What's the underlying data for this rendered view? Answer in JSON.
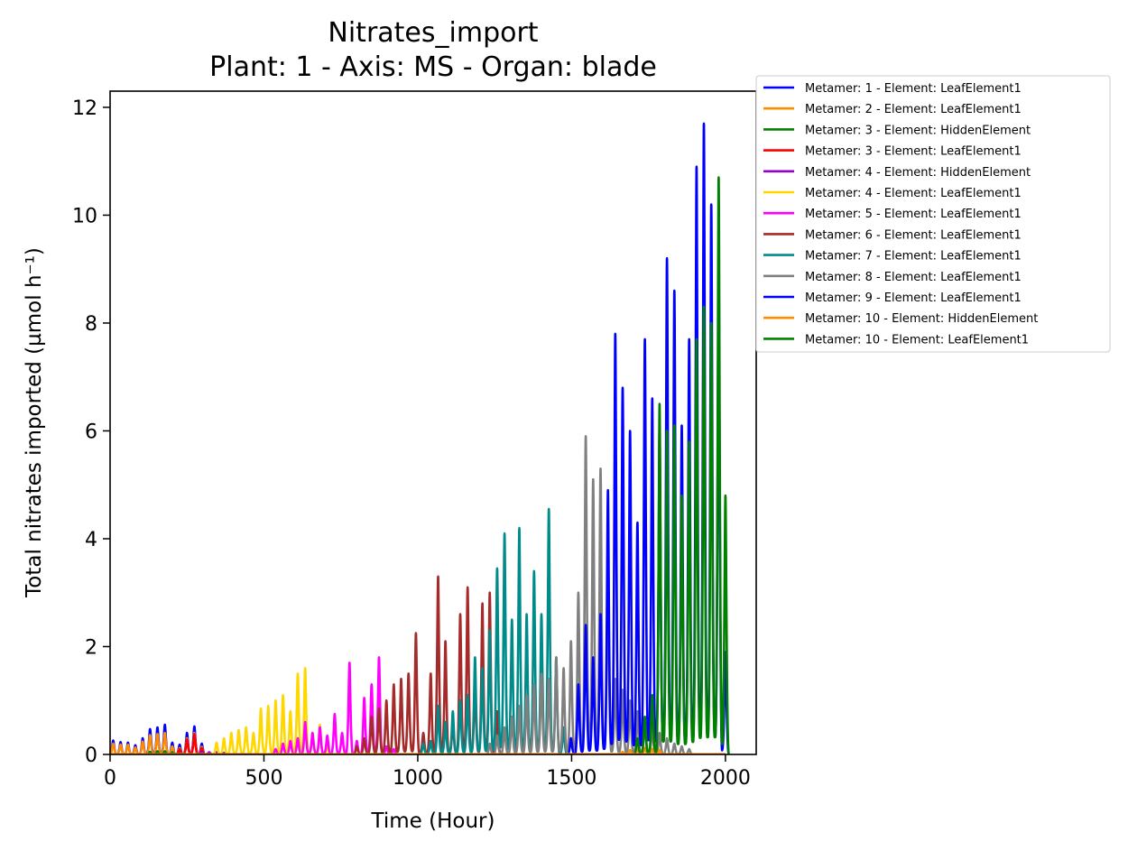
{
  "chart_data": {
    "type": "line",
    "title": "Nitrates_import",
    "subtitle": "Plant: 1 - Axis: MS - Organ: blade",
    "xlabel": "Time (Hour)",
    "ylabel": "Total nitrates imported (µmol h⁻¹)",
    "xlim": [
      0,
      2100
    ],
    "ylim": [
      0,
      12.3
    ],
    "xticks": [
      0,
      500,
      1000,
      1500,
      2000
    ],
    "xtick_labels": [
      "0",
      "500",
      "1000",
      "1500",
      "2000"
    ],
    "yticks": [
      0,
      2,
      4,
      6,
      8,
      10,
      12
    ],
    "ytick_labels": [
      "0",
      "2",
      "4",
      "6",
      "8",
      "10",
      "12"
    ],
    "grid": false,
    "legend_position": "outside-top-right",
    "series": [
      {
        "name": "Metamer: 1 - Element: LeafElement1",
        "color": "#0000ff",
        "peaks": [
          [
            10,
            0.26
          ],
          [
            34,
            0.23
          ],
          [
            58,
            0.22
          ],
          [
            82,
            0.17
          ],
          [
            106,
            0.3
          ],
          [
            130,
            0.47
          ],
          [
            154,
            0.5
          ],
          [
            178,
            0.55
          ],
          [
            202,
            0.22
          ],
          [
            226,
            0.18
          ],
          [
            250,
            0.4
          ],
          [
            274,
            0.52
          ],
          [
            298,
            0.2
          ],
          [
            322,
            0.03
          ]
        ]
      },
      {
        "name": "Metamer: 2 - Element: LeafElement1",
        "color": "#ff8c00",
        "peaks": [
          [
            10,
            0.2
          ],
          [
            34,
            0.18
          ],
          [
            58,
            0.18
          ],
          [
            82,
            0.13
          ],
          [
            106,
            0.24
          ],
          [
            130,
            0.36
          ],
          [
            154,
            0.38
          ],
          [
            178,
            0.4
          ],
          [
            202,
            0.15
          ],
          [
            226,
            0.12
          ],
          [
            250,
            0.3
          ],
          [
            274,
            0.4
          ],
          [
            298,
            0.14
          ],
          [
            322,
            0.02
          ]
        ]
      },
      {
        "name": "Metamer: 3 - Element: HiddenElement",
        "color": "#008000",
        "peaks": [
          [
            130,
            0.05
          ],
          [
            154,
            0.06
          ],
          [
            178,
            0.06
          ],
          [
            202,
            0.04
          ],
          [
            226,
            0.03
          ]
        ]
      },
      {
        "name": "Metamer: 3 - Element: LeafElement1",
        "color": "#ff0000",
        "peaks": [
          [
            226,
            0.1
          ],
          [
            250,
            0.28
          ],
          [
            274,
            0.38
          ],
          [
            298,
            0.12
          ],
          [
            322,
            0.02
          ]
        ]
      },
      {
        "name": "Metamer: 4 - Element: HiddenElement",
        "color": "#9400d3",
        "peaks": [
          [
            298,
            0.05
          ],
          [
            322,
            0.04
          ],
          [
            346,
            0.04
          ],
          [
            370,
            0.03
          ]
        ]
      },
      {
        "name": "Metamer: 4 - Element: LeafElement1",
        "color": "#ffd700",
        "peaks": [
          [
            346,
            0.22
          ],
          [
            370,
            0.3
          ],
          [
            394,
            0.4
          ],
          [
            418,
            0.45
          ],
          [
            442,
            0.5
          ],
          [
            466,
            0.4
          ],
          [
            490,
            0.85
          ],
          [
            514,
            0.9
          ],
          [
            538,
            1.0
          ],
          [
            562,
            1.1
          ],
          [
            586,
            0.8
          ],
          [
            610,
            1.5
          ],
          [
            634,
            1.6
          ],
          [
            658,
            0.4
          ],
          [
            682,
            0.55
          ],
          [
            706,
            0.15
          ]
        ]
      },
      {
        "name": "Metamer: 5 - Element: LeafElement1",
        "color": "#ff00ff",
        "peaks": [
          [
            538,
            0.1
          ],
          [
            562,
            0.2
          ],
          [
            586,
            0.25
          ],
          [
            610,
            0.3
          ],
          [
            634,
            0.6
          ],
          [
            658,
            0.4
          ],
          [
            682,
            0.5
          ],
          [
            706,
            0.35
          ],
          [
            730,
            0.75
          ],
          [
            754,
            0.4
          ],
          [
            778,
            1.7
          ],
          [
            802,
            0.25
          ],
          [
            826,
            1.05
          ],
          [
            850,
            1.3
          ],
          [
            874,
            1.8
          ],
          [
            898,
            0.15
          ],
          [
            922,
            0.1
          ]
        ]
      },
      {
        "name": "Metamer: 6 - Element: LeafElement1",
        "color": "#a52a2a",
        "peaks": [
          [
            802,
            0.15
          ],
          [
            826,
            0.3
          ],
          [
            850,
            0.7
          ],
          [
            874,
            0.85
          ],
          [
            898,
            1.0
          ],
          [
            922,
            1.3
          ],
          [
            946,
            1.4
          ],
          [
            970,
            1.5
          ],
          [
            994,
            2.25
          ],
          [
            1018,
            0.4
          ],
          [
            1042,
            1.5
          ],
          [
            1066,
            3.3
          ],
          [
            1090,
            2.1
          ],
          [
            1114,
            0.6
          ],
          [
            1138,
            2.6
          ],
          [
            1162,
            3.1
          ],
          [
            1186,
            1.3
          ],
          [
            1210,
            2.8
          ],
          [
            1234,
            3.0
          ],
          [
            1258,
            0.8
          ]
        ]
      },
      {
        "name": "Metamer: 7 - Element: LeafElement1",
        "color": "#008b8b",
        "peaks": [
          [
            1018,
            0.2
          ],
          [
            1042,
            0.25
          ],
          [
            1066,
            0.9
          ],
          [
            1090,
            0.6
          ],
          [
            1114,
            0.8
          ],
          [
            1138,
            1.0
          ],
          [
            1162,
            1.1
          ],
          [
            1186,
            1.8
          ],
          [
            1210,
            1.6
          ],
          [
            1234,
            2.3
          ],
          [
            1258,
            3.45
          ],
          [
            1282,
            4.1
          ],
          [
            1306,
            2.5
          ],
          [
            1330,
            4.2
          ],
          [
            1354,
            2.6
          ],
          [
            1378,
            3.4
          ],
          [
            1402,
            2.6
          ],
          [
            1426,
            4.55
          ],
          [
            1450,
            1.8
          ],
          [
            1474,
            0.5
          ]
        ]
      },
      {
        "name": "Metamer: 8 - Element: LeafElement1",
        "color": "#808080",
        "peaks": [
          [
            1234,
            0.2
          ],
          [
            1258,
            0.35
          ],
          [
            1282,
            0.5
          ],
          [
            1306,
            0.7
          ],
          [
            1330,
            0.9
          ],
          [
            1354,
            1.1
          ],
          [
            1378,
            1.3
          ],
          [
            1402,
            1.5
          ],
          [
            1426,
            1.4
          ],
          [
            1450,
            1.8
          ],
          [
            1474,
            1.6
          ],
          [
            1498,
            2.1
          ],
          [
            1522,
            3.0
          ],
          [
            1546,
            5.9
          ],
          [
            1570,
            5.1
          ],
          [
            1594,
            5.3
          ],
          [
            1618,
            3.6
          ],
          [
            1642,
            1.4
          ],
          [
            1666,
            1.2
          ],
          [
            1690,
            1.0
          ],
          [
            1714,
            0.8
          ],
          [
            1738,
            0.6
          ],
          [
            1762,
            0.5
          ],
          [
            1786,
            0.4
          ],
          [
            1810,
            0.3
          ],
          [
            1834,
            0.2
          ],
          [
            1858,
            0.15
          ],
          [
            1882,
            0.1
          ]
        ]
      },
      {
        "name": "Metamer: 9 - Element: LeafElement1",
        "color": "#0000ff",
        "peaks": [
          [
            1498,
            0.3
          ],
          [
            1522,
            1.3
          ],
          [
            1546,
            2.4
          ],
          [
            1570,
            1.8
          ],
          [
            1594,
            2.6
          ],
          [
            1618,
            4.9
          ],
          [
            1642,
            7.8
          ],
          [
            1666,
            6.8
          ],
          [
            1690,
            6.0
          ],
          [
            1714,
            4.3
          ],
          [
            1738,
            7.7
          ],
          [
            1762,
            6.6
          ],
          [
            1786,
            6.1
          ],
          [
            1810,
            9.2
          ],
          [
            1834,
            8.6
          ],
          [
            1858,
            6.1
          ],
          [
            1882,
            7.7
          ],
          [
            1906,
            10.9
          ],
          [
            1930,
            11.7
          ],
          [
            1954,
            10.2
          ],
          [
            1978,
            8.9
          ],
          [
            2000,
            1.9
          ]
        ]
      },
      {
        "name": "Metamer: 10 - Element: HiddenElement",
        "color": "#ff8c00",
        "peaks": [
          [
            1666,
            0.05
          ],
          [
            1690,
            0.08
          ],
          [
            1714,
            0.1
          ],
          [
            1738,
            0.12
          ],
          [
            1762,
            0.1
          ],
          [
            1786,
            0.08
          ]
        ]
      },
      {
        "name": "Metamer: 10 - Element: LeafElement1",
        "color": "#008000",
        "peaks": [
          [
            1714,
            0.3
          ],
          [
            1738,
            0.7
          ],
          [
            1762,
            1.1
          ],
          [
            1786,
            6.5
          ],
          [
            1810,
            6.0
          ],
          [
            1834,
            6.1
          ],
          [
            1858,
            4.8
          ],
          [
            1882,
            5.8
          ],
          [
            1906,
            7.7
          ],
          [
            1930,
            8.3
          ],
          [
            1954,
            8.0
          ],
          [
            1978,
            10.7
          ],
          [
            2000,
            4.8
          ]
        ]
      }
    ]
  }
}
